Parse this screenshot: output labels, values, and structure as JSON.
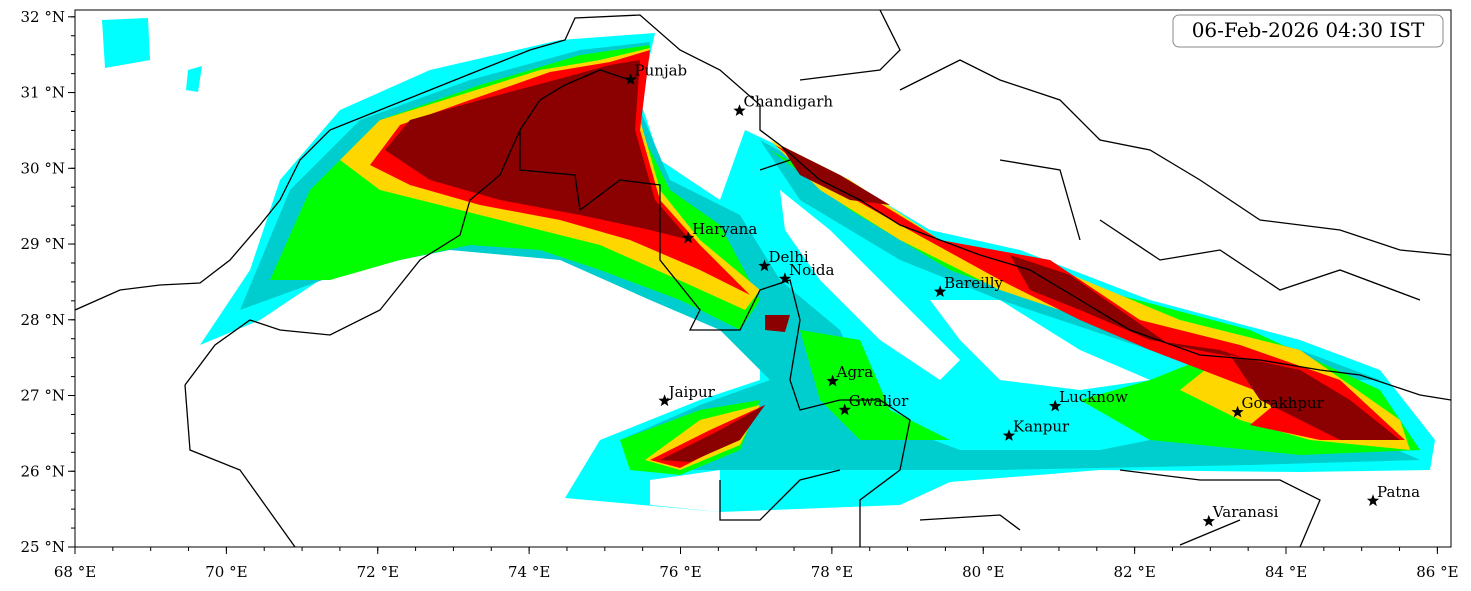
{
  "map": {
    "timestamp": "06-Feb-2026 04:30 IST",
    "xlim": [
      68,
      86.18
    ],
    "ylim": [
      25,
      32.09
    ],
    "xticks": [
      {
        "value": 68,
        "label": "68 °E"
      },
      {
        "value": 70,
        "label": "70 °E"
      },
      {
        "value": 72,
        "label": "72 °E"
      },
      {
        "value": 74,
        "label": "74 °E"
      },
      {
        "value": 76,
        "label": "76 °E"
      },
      {
        "value": 78,
        "label": "78 °E"
      },
      {
        "value": 80,
        "label": "80 °E"
      },
      {
        "value": 82,
        "label": "82 °E"
      },
      {
        "value": 84,
        "label": "84 °E"
      },
      {
        "value": 86,
        "label": "86 °E"
      }
    ],
    "yticks": [
      {
        "value": 25,
        "label": "25 °N"
      },
      {
        "value": 26,
        "label": "26 °N"
      },
      {
        "value": 27,
        "label": "27 °N"
      },
      {
        "value": 28,
        "label": "28 °N"
      },
      {
        "value": 29,
        "label": "29 °N"
      },
      {
        "value": 30,
        "label": "30 °N"
      },
      {
        "value": 31,
        "label": "31 °N"
      },
      {
        "value": 32,
        "label": "32 °N"
      }
    ],
    "cities": [
      {
        "name": "Punjab",
        "lon": 75.34,
        "lat": 31.17
      },
      {
        "name": "Chandigarh",
        "lon": 76.78,
        "lat": 30.76
      },
      {
        "name": "Haryana",
        "lon": 76.1,
        "lat": 29.08
      },
      {
        "name": "Delhi",
        "lon": 77.11,
        "lat": 28.71
      },
      {
        "name": "Noida",
        "lon": 77.38,
        "lat": 28.54
      },
      {
        "name": "Bareilly",
        "lon": 79.43,
        "lat": 28.37
      },
      {
        "name": "Agra",
        "lon": 78.01,
        "lat": 27.19
      },
      {
        "name": "Jaipur",
        "lon": 75.79,
        "lat": 26.93
      },
      {
        "name": "Gwalior",
        "lon": 78.17,
        "lat": 26.81
      },
      {
        "name": "Lucknow",
        "lon": 80.95,
        "lat": 26.86
      },
      {
        "name": "Kanpur",
        "lon": 80.34,
        "lat": 26.47
      },
      {
        "name": "Gorakhpur",
        "lon": 83.36,
        "lat": 26.78
      },
      {
        "name": "Varanasi",
        "lon": 82.98,
        "lat": 25.34
      },
      {
        "name": "Patna",
        "lon": 85.15,
        "lat": 25.61
      }
    ]
  }
}
